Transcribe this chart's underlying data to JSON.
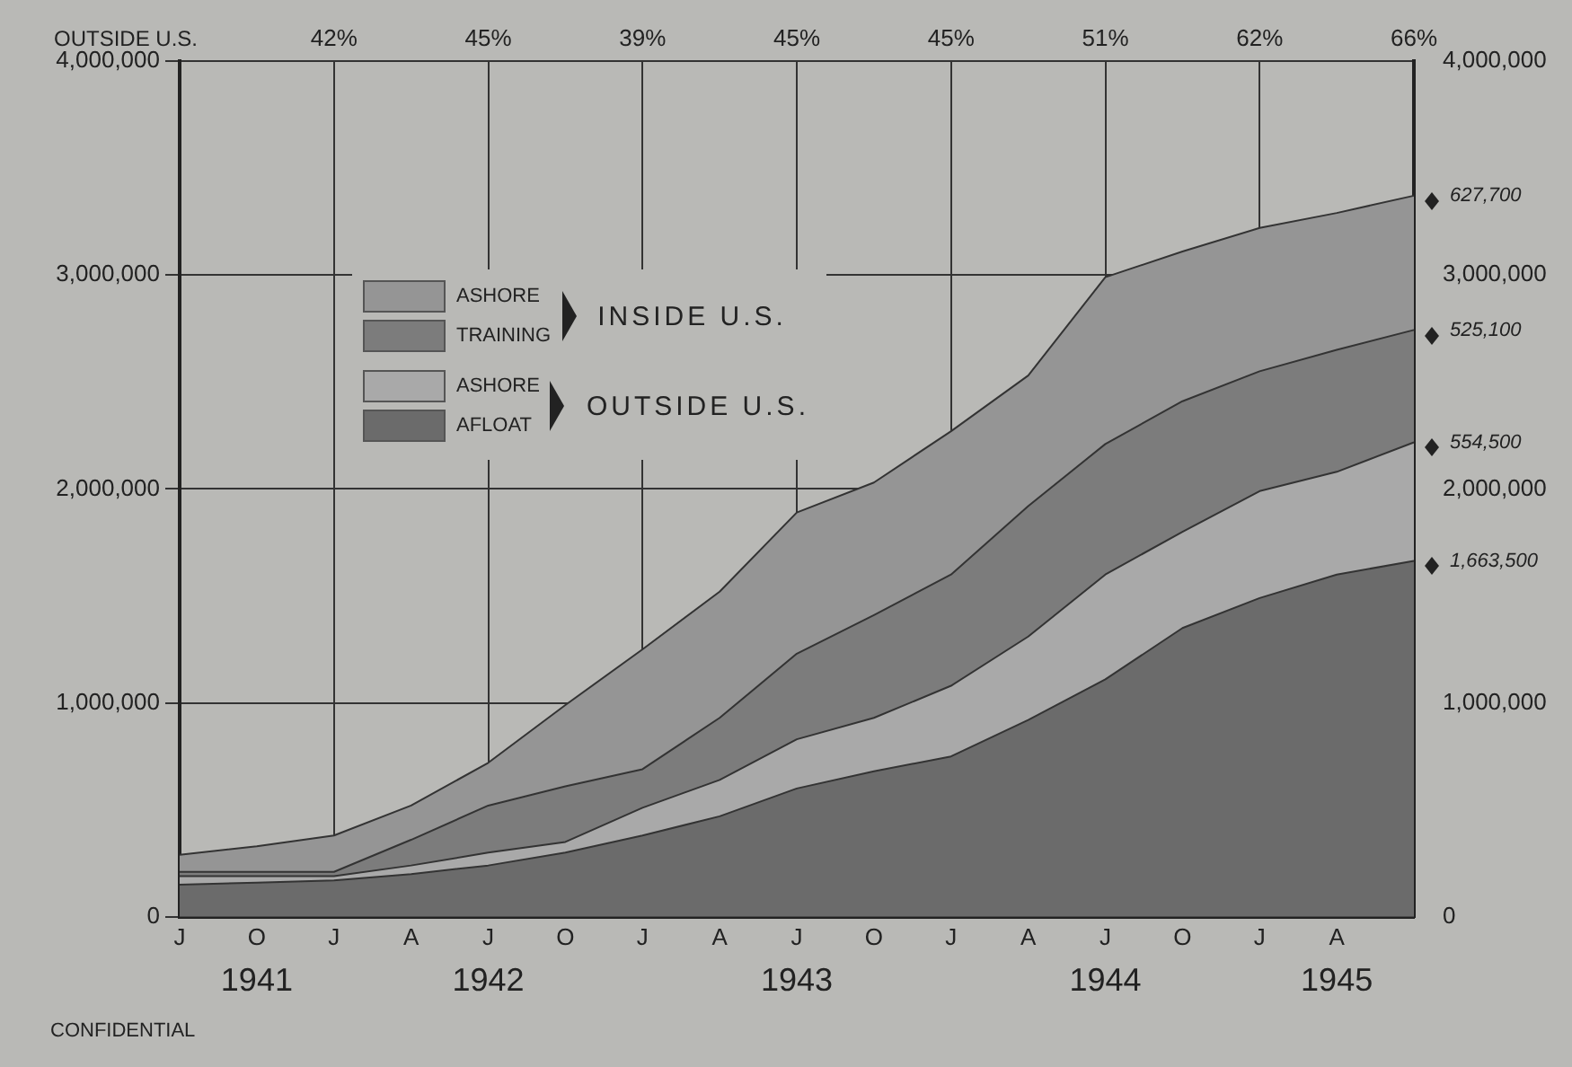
{
  "chart_data": {
    "type": "area",
    "stacked": true,
    "categories": [
      "J",
      "O",
      "J",
      "A",
      "J",
      "O",
      "J",
      "A",
      "J",
      "O",
      "J",
      "A",
      "J",
      "O",
      "J",
      "A",
      null
    ],
    "series": [
      {
        "name": "AFLOAT",
        "color": "#6b6b6b",
        "values": [
          150000,
          160000,
          170000,
          200000,
          240000,
          300000,
          380000,
          470000,
          600000,
          680000,
          750000,
          920000,
          1110000,
          1350000,
          1490000,
          1600000,
          1663500
        ],
        "value_labels": [
          null,
          null,
          null,
          null,
          null,
          null,
          null,
          null,
          null,
          null,
          null,
          null,
          null,
          null,
          null,
          null,
          "1,663,500"
        ]
      },
      {
        "name": "ASHORE",
        "color": "#a9a9a9",
        "values": [
          40000,
          30000,
          20000,
          40000,
          60000,
          50000,
          130000,
          170000,
          230000,
          250000,
          330000,
          390000,
          490000,
          450000,
          500000,
          480000,
          554500
        ],
        "value_labels": [
          null,
          null,
          null,
          null,
          null,
          null,
          null,
          null,
          null,
          null,
          null,
          null,
          null,
          null,
          null,
          null,
          "554,500"
        ]
      },
      {
        "name": "TRAINING",
        "color": "#7c7c7c",
        "values": [
          20000,
          20000,
          20000,
          120000,
          220000,
          260000,
          180000,
          290000,
          400000,
          480000,
          520000,
          610000,
          610000,
          610000,
          560000,
          570000,
          525100
        ],
        "value_labels": [
          null,
          null,
          null,
          null,
          null,
          null,
          null,
          null,
          null,
          null,
          null,
          null,
          null,
          null,
          null,
          null,
          "525,100"
        ]
      },
      {
        "name": "ASHORE",
        "color": "#959595",
        "values": [
          80000,
          120000,
          170000,
          160000,
          200000,
          380000,
          560000,
          590000,
          660000,
          620000,
          670000,
          610000,
          780000,
          700000,
          670000,
          640000,
          627700
        ],
        "value_labels": [
          null,
          null,
          null,
          null,
          null,
          null,
          null,
          null,
          null,
          null,
          null,
          null,
          null,
          null,
          null,
          null,
          "627,700"
        ]
      }
    ],
    "ylim": [
      0,
      4000000
    ],
    "yticks": [
      0,
      {
        "value": 1000000,
        "label": "1,000,000"
      },
      {
        "value": 2000000,
        "label": "2,000,000"
      },
      {
        "value": 3000000,
        "label": "3,000,000"
      },
      {
        "value": 4000000,
        "label": "4,000,000"
      }
    ],
    "y2lim": [
      0,
      4000000
    ],
    "y2ticks": [
      0,
      {
        "value": 1000000,
        "label": "1,000,000"
      },
      {
        "value": 2000000,
        "label": "2,000,000"
      },
      {
        "value": 3000000,
        "label": "3,000,000"
      },
      {
        "value": 4000000,
        "label": "4,000,000"
      }
    ],
    "grid": true,
    "legend": "top left",
    "annotations": [
      "INSIDE U.S.",
      "OUTSIDE U.S.",
      "CONFIDENTIAL",
      "OUTSIDE U.S.",
      "42%",
      "45%",
      "39%",
      "45%",
      "45%",
      "51%",
      "62%",
      "66%",
      "1941",
      "1942",
      "1943",
      "1944",
      "1945"
    ]
  }
}
